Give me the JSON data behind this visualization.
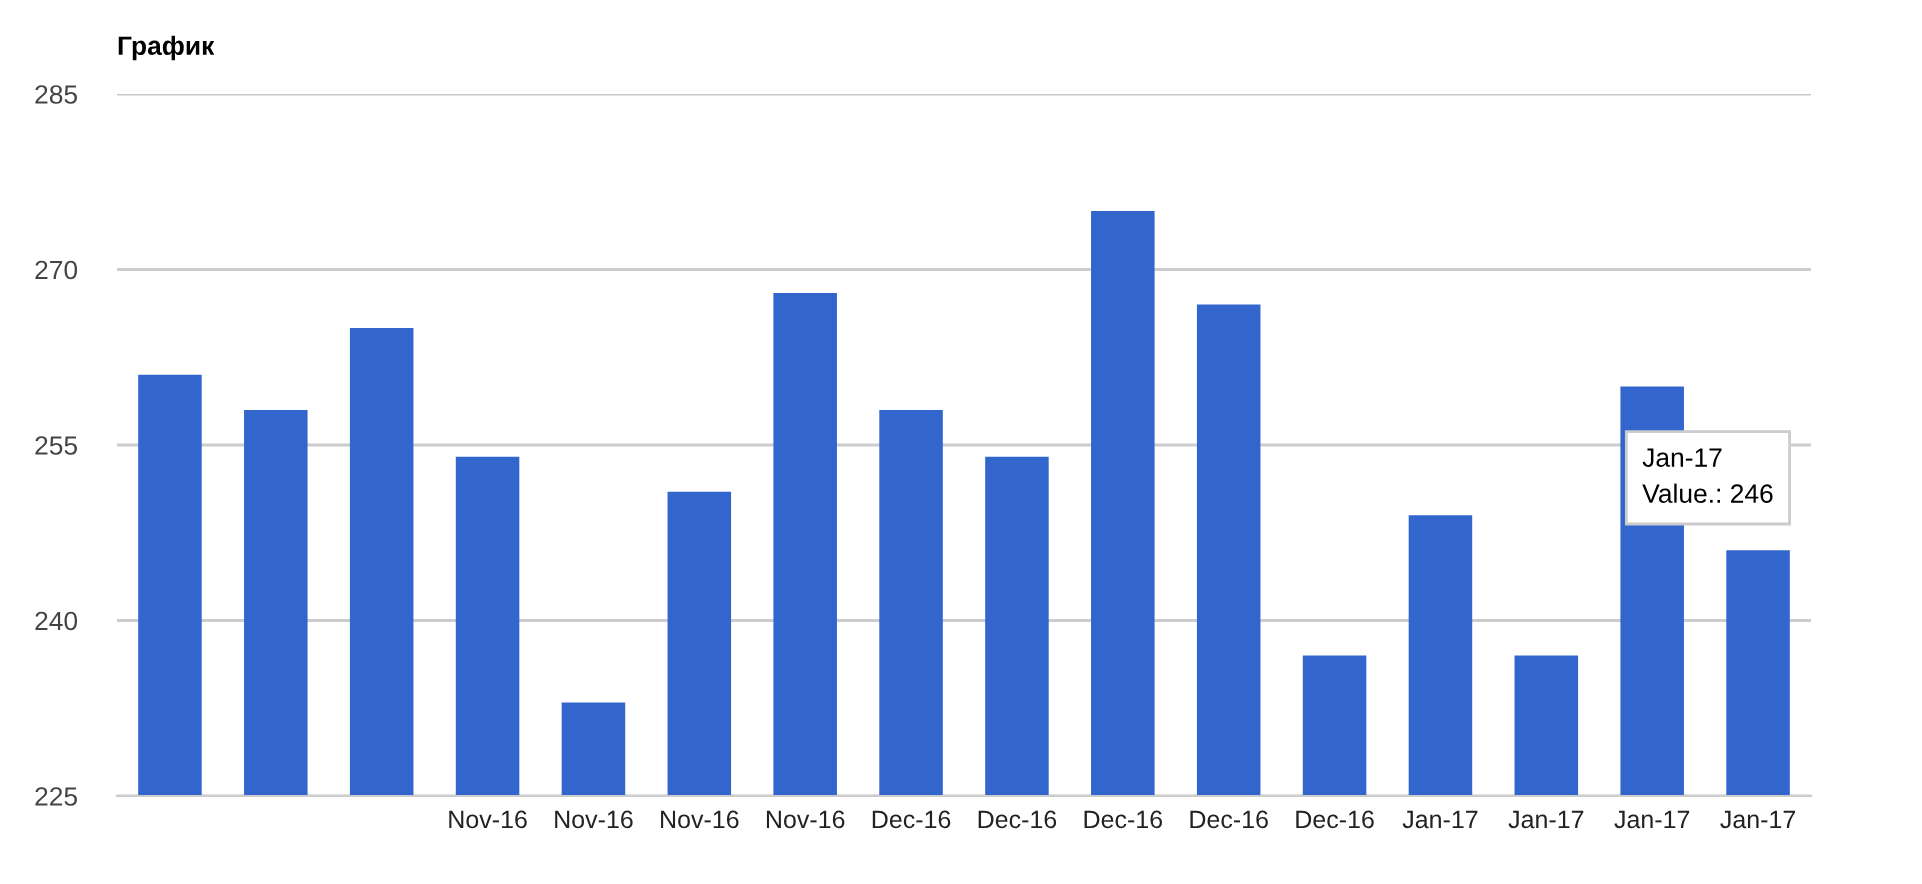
{
  "chart_data": {
    "type": "bar",
    "title": "График",
    "categories": [
      null,
      null,
      null,
      "Nov-16",
      "Nov-16",
      "Nov-16",
      "Nov-16",
      "Dec-16",
      "Dec-16",
      "Dec-16",
      "Dec-16",
      "Dec-16",
      "Jan-17",
      "Jan-17",
      "Jan-17",
      "Jan-17"
    ],
    "values": [
      261,
      258,
      265,
      254,
      233,
      251,
      268,
      258,
      254,
      275,
      267,
      237,
      249,
      237,
      260,
      246
    ],
    "color": "#3366cc",
    "ylim": [
      225,
      285
    ],
    "yticks": [
      225,
      240,
      255,
      270,
      285
    ],
    "grid": "y",
    "annotations": [
      "Jan-17\nValue.: 246"
    ]
  }
}
